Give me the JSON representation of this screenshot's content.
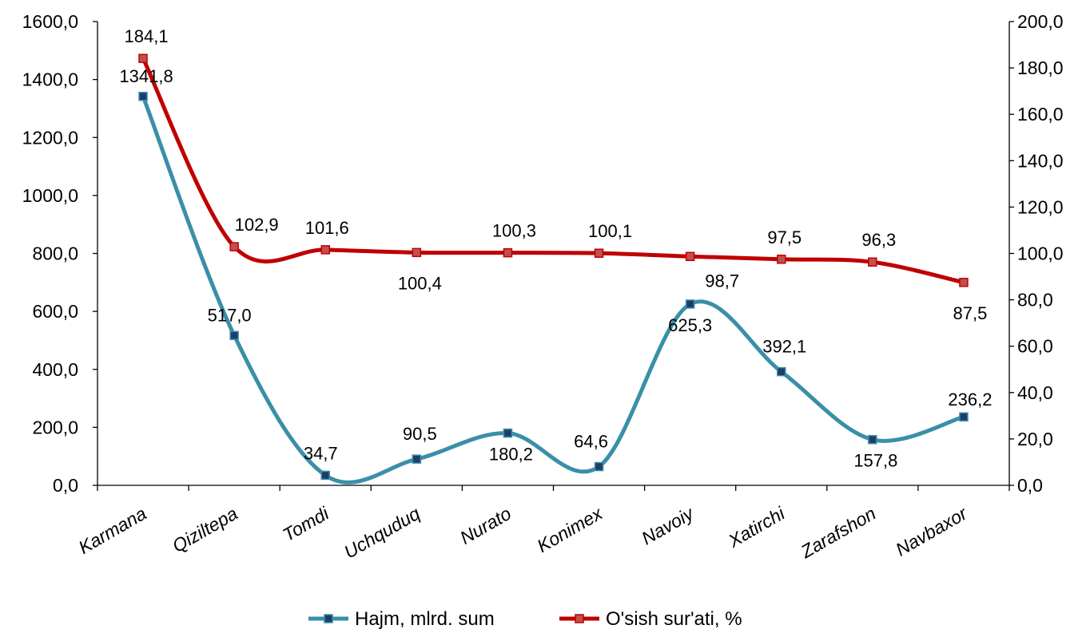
{
  "chart_data": {
    "type": "line",
    "title": "",
    "xlabel": "",
    "ylabel": "",
    "categories": [
      "Karmana",
      "Qiziltepa",
      "Tomdi",
      "Uchquduq",
      "Nurato",
      "Konimex",
      "Navoiy",
      "Xatirchi",
      "Zarafshon",
      "Navbaxor"
    ],
    "y_left": {
      "min": 0,
      "max": 1600,
      "step": 200,
      "ticks": [
        "0,0",
        "200,0",
        "400,0",
        "600,0",
        "800,0",
        "1000,0",
        "1200,0",
        "1400,0",
        "1600,0"
      ]
    },
    "y_right": {
      "min": 0,
      "max": 200,
      "step": 20,
      "ticks": [
        "0,0",
        "20,0",
        "40,0",
        "60,0",
        "80,0",
        "100,0",
        "120,0",
        "140,0",
        "160,0",
        "180,0",
        "200,0"
      ]
    },
    "series": [
      {
        "name": "Hajm, mlrd. sum",
        "axis": "left",
        "color": "#3a8fa8",
        "marker_color": "#1f3d6b",
        "values": [
          1341.8,
          517.0,
          34.7,
          90.5,
          180.2,
          64.6,
          625.3,
          392.1,
          157.8,
          236.2
        ],
        "labels": [
          "1341,8",
          "517,0",
          "34,7",
          "90,5",
          "180,2",
          "64,6",
          "625,3",
          "392,1",
          "157,8",
          "236,2"
        ]
      },
      {
        "name": "O'sish sur'ati, %",
        "axis": "right",
        "color": "#c00000",
        "marker_color": "#c0504d",
        "values": [
          184.1,
          102.9,
          101.6,
          100.4,
          100.3,
          100.1,
          98.7,
          97.5,
          96.3,
          87.5
        ],
        "labels": [
          "184,1",
          "102,9",
          "101,6",
          "100,4",
          "100,3",
          "100,1",
          "98,7",
          "97,5",
          "96,3",
          "87,5"
        ]
      }
    ],
    "legend": "bottom",
    "grid": false
  }
}
